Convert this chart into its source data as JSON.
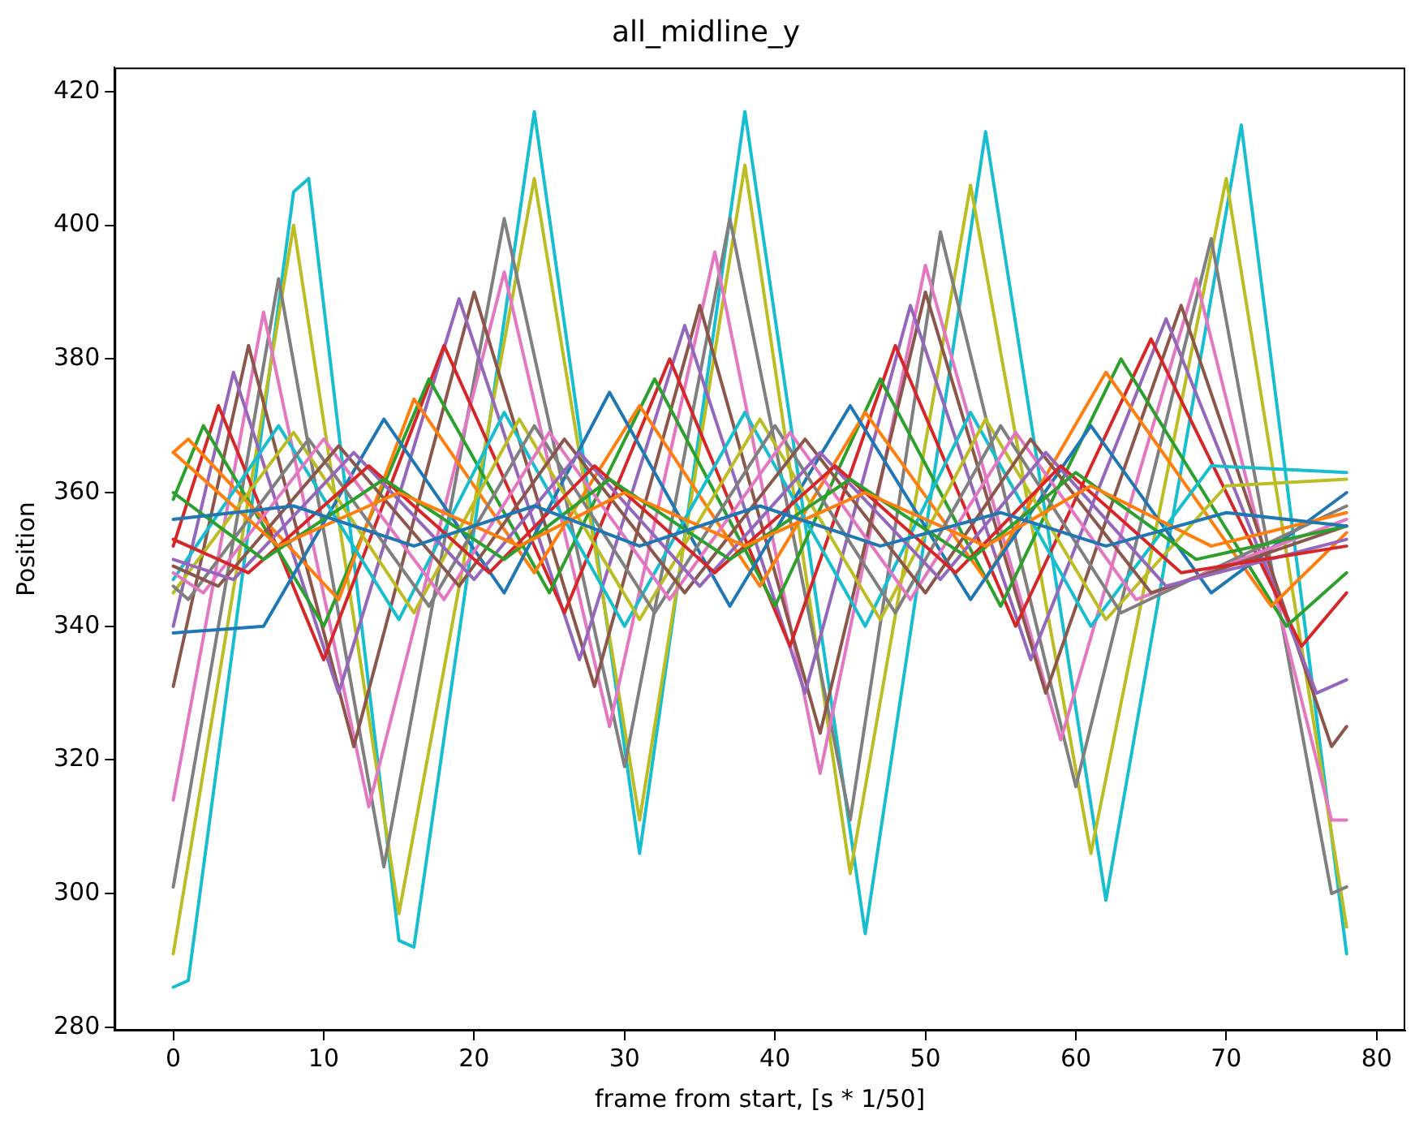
{
  "chart_data": {
    "type": "line",
    "title": "all_midline_y",
    "xlabel": "frame from start, [s * 1/50]",
    "ylabel": "Position",
    "xlim": [
      -3.9,
      81.9
    ],
    "xticks": [
      0,
      10,
      20,
      30,
      40,
      50,
      60,
      70,
      80
    ],
    "ylim": [
      279.5,
      423.6
    ],
    "yticks": [
      280,
      300,
      320,
      340,
      360,
      380,
      400,
      420
    ],
    "grid": false,
    "legend": false,
    "marker": "none",
    "line_style": "solid",
    "series": [
      {
        "color": "#1f77b4",
        "x": [
          0,
          8,
          16,
          24,
          31,
          39,
          47,
          55,
          62,
          70,
          78
        ],
        "values": [
          356,
          358,
          352,
          358,
          352,
          358,
          352,
          357,
          352,
          357,
          355
        ]
      },
      {
        "color": "#ff7f0e",
        "x": [
          0,
          7,
          15,
          23,
          30,
          38,
          46,
          54,
          61,
          69,
          78
        ],
        "values": [
          366,
          352,
          360,
          352,
          360,
          352,
          360,
          352,
          361,
          352,
          357
        ]
      },
      {
        "color": "#2ca02c",
        "x": [
          0,
          6,
          14,
          22,
          29,
          37,
          45,
          53,
          60,
          68,
          78
        ],
        "values": [
          360,
          350,
          362,
          350,
          362,
          350,
          362,
          350,
          363,
          350,
          355
        ]
      },
      {
        "color": "#d62728",
        "x": [
          0,
          5,
          13,
          21,
          28,
          36,
          44,
          52,
          59,
          67,
          78
        ],
        "values": [
          353,
          348,
          364,
          348,
          364,
          348,
          364,
          348,
          364,
          348,
          352
        ]
      },
      {
        "color": "#9467bd",
        "x": [
          0,
          4,
          12,
          20,
          27,
          35,
          43,
          51,
          58,
          66,
          78
        ],
        "values": [
          350,
          347,
          366,
          347,
          366,
          346,
          366,
          347,
          366,
          346,
          353
        ]
      },
      {
        "color": "#8c564b",
        "x": [
          0,
          3,
          11,
          19,
          26,
          34,
          42,
          50,
          57,
          65,
          78
        ],
        "values": [
          349,
          346,
          367,
          346,
          368,
          345,
          368,
          345,
          368,
          345,
          355
        ]
      },
      {
        "color": "#e377c2",
        "x": [
          0,
          2,
          10,
          18,
          25,
          33,
          41,
          49,
          56,
          64,
          78
        ],
        "values": [
          348,
          345,
          368,
          344,
          369,
          344,
          369,
          344,
          369,
          344,
          356
        ]
      },
      {
        "color": "#7f7f7f",
        "x": [
          0,
          1,
          9,
          17,
          24,
          32,
          40,
          48,
          55,
          63,
          78
        ],
        "values": [
          346,
          344,
          368,
          343,
          370,
          342,
          370,
          342,
          370,
          342,
          358
        ]
      },
      {
        "color": "#bcbd22",
        "x": [
          0,
          8,
          16,
          23,
          31,
          39,
          47,
          54,
          62,
          70,
          78
        ],
        "values": [
          345,
          369,
          342,
          371,
          341,
          371,
          341,
          371,
          341,
          361,
          362
        ]
      },
      {
        "color": "#17becf",
        "x": [
          0,
          7,
          15,
          22,
          30,
          38,
          46,
          53,
          61,
          69,
          78
        ],
        "values": [
          347,
          370,
          341,
          372,
          340,
          372,
          340,
          372,
          340,
          364,
          363
        ]
      },
      {
        "color": "#1f77b4",
        "x": [
          0,
          6,
          14,
          22,
          29,
          37,
          45,
          53,
          61,
          69,
          78
        ],
        "values": [
          339,
          340,
          371,
          345,
          375,
          343,
          373,
          344,
          370,
          345,
          360
        ]
      },
      {
        "color": "#ff7f0e",
        "x": [
          0,
          1,
          11,
          16,
          24,
          31,
          39,
          46,
          54,
          62,
          73,
          78
        ],
        "values": [
          366,
          368,
          344,
          374,
          348,
          373,
          346,
          372,
          347,
          378,
          343,
          354
        ]
      },
      {
        "color": "#2ca02c",
        "x": [
          0,
          2,
          10,
          17,
          25,
          32,
          40,
          47,
          55,
          63,
          74,
          78
        ],
        "values": [
          359,
          370,
          340,
          377,
          345,
          377,
          343,
          377,
          343,
          380,
          340,
          348
        ]
      },
      {
        "color": "#d62728",
        "x": [
          0,
          3,
          10,
          18,
          26,
          33,
          41,
          48,
          56,
          65,
          75,
          78
        ],
        "values": [
          352,
          373,
          335,
          382,
          342,
          380,
          337,
          382,
          340,
          383,
          337,
          345
        ]
      },
      {
        "color": "#9467bd",
        "x": [
          0,
          4,
          11,
          19,
          27,
          34,
          42,
          49,
          57,
          66,
          76,
          78
        ],
        "values": [
          340,
          378,
          330,
          389,
          335,
          385,
          330,
          388,
          335,
          386,
          330,
          332
        ]
      },
      {
        "color": "#8c564b",
        "x": [
          0,
          5,
          12,
          20,
          28,
          35,
          43,
          50,
          58,
          67,
          77,
          78
        ],
        "values": [
          331,
          382,
          322,
          390,
          331,
          388,
          324,
          390,
          330,
          388,
          322,
          325
        ]
      },
      {
        "color": "#e377c2",
        "x": [
          0,
          6,
          13,
          22,
          29,
          36,
          43,
          50,
          59,
          68,
          77,
          78
        ],
        "values": [
          314,
          387,
          313,
          393,
          325,
          396,
          318,
          394,
          323,
          392,
          311,
          311
        ]
      },
      {
        "color": "#7f7f7f",
        "x": [
          0,
          7,
          14,
          22,
          30,
          37,
          45,
          51,
          60,
          69,
          77,
          78
        ],
        "values": [
          301,
          392,
          304,
          401,
          319,
          401,
          311,
          399,
          316,
          398,
          300,
          301
        ]
      },
      {
        "color": "#bcbd22",
        "x": [
          0,
          8,
          15,
          24,
          31,
          38,
          45,
          53,
          61,
          70,
          78
        ],
        "values": [
          291,
          400,
          297,
          407,
          311,
          409,
          303,
          406,
          306,
          407,
          295
        ]
      },
      {
        "color": "#17becf",
        "x": [
          0,
          1,
          8,
          9,
          15,
          16,
          24,
          31,
          38,
          46,
          54,
          62,
          71,
          78
        ],
        "values": [
          286,
          287,
          405,
          407,
          293,
          292,
          417,
          306,
          417,
          294,
          414,
          299,
          415,
          291
        ]
      }
    ]
  }
}
